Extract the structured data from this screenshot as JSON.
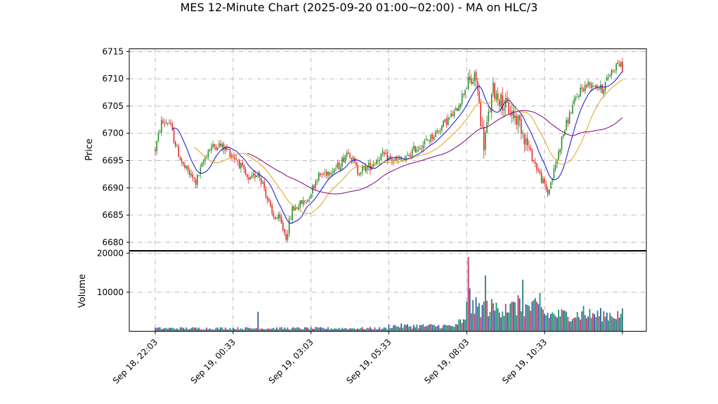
{
  "chart_data": {
    "type": "candlestick",
    "title": "MES 12-Minute Chart (2025-09-20 01:00~02:00) - MA on HLC/3",
    "price_panel": {
      "ylabel": "Price",
      "ylim": [
        6678.5,
        6715.5
      ],
      "yticks": [
        6680,
        6685,
        6690,
        6695,
        6700,
        6705,
        6710,
        6715
      ],
      "grid": true
    },
    "volume_panel": {
      "ylabel": "Volume",
      "ylim": [
        0,
        20500
      ],
      "yticks": [
        10000,
        20000
      ],
      "grid": true
    },
    "x_ticks": [
      "Sep 18, 22:03",
      "Sep 19, 00:33",
      "Sep 19, 03:03",
      "Sep 19, 05:33",
      "Sep 19, 08:03",
      "Sep 19, 10:33"
    ],
    "x_tick_bar_index": [
      0,
      50,
      100,
      150,
      200,
      250
    ],
    "bar_count": 301,
    "up_color": "#228b22",
    "down_color": "#e62222",
    "volume_colors": [
      "#2a7a7a",
      "#cc3366",
      "#3355aa",
      "#119966"
    ],
    "price_anchors": [
      [
        0,
        6697
      ],
      [
        4,
        6702
      ],
      [
        9,
        6702
      ],
      [
        14,
        6697
      ],
      [
        18,
        6694
      ],
      [
        26,
        6691
      ],
      [
        34,
        6697
      ],
      [
        40,
        6698
      ],
      [
        46,
        6697
      ],
      [
        53,
        6695
      ],
      [
        60,
        6691
      ],
      [
        66,
        6693
      ],
      [
        70,
        6690
      ],
      [
        75,
        6685
      ],
      [
        80,
        6684
      ],
      [
        84,
        6681
      ],
      [
        88,
        6686
      ],
      [
        93,
        6687
      ],
      [
        98,
        6688
      ],
      [
        104,
        6692
      ],
      [
        111,
        6693
      ],
      [
        118,
        6694
      ],
      [
        124,
        6697
      ],
      [
        130,
        6693
      ],
      [
        138,
        6694
      ],
      [
        145,
        6696
      ],
      [
        153,
        6695
      ],
      [
        160,
        6695
      ],
      [
        166,
        6697
      ],
      [
        172,
        6698
      ],
      [
        180,
        6700
      ],
      [
        186,
        6702
      ],
      [
        193,
        6704
      ],
      [
        200,
        6709
      ],
      [
        206,
        6710
      ],
      [
        211,
        6698
      ],
      [
        217,
        6708
      ],
      [
        222,
        6706
      ],
      [
        228,
        6704
      ],
      [
        234,
        6702
      ],
      [
        240,
        6697
      ],
      [
        246,
        6693
      ],
      [
        252,
        6689
      ],
      [
        256,
        6693
      ],
      [
        262,
        6700
      ],
      [
        268,
        6705
      ],
      [
        273,
        6708
      ],
      [
        278,
        6709
      ],
      [
        282,
        6709
      ],
      [
        287,
        6708
      ],
      [
        292,
        6711
      ],
      [
        297,
        6713
      ],
      [
        300,
        6712
      ]
    ],
    "ma_lines": [
      {
        "color": "#1010d0",
        "period": 12
      },
      {
        "color": "#e6a01a",
        "period": 26
      },
      {
        "color": "#800080",
        "period": 60
      }
    ]
  }
}
